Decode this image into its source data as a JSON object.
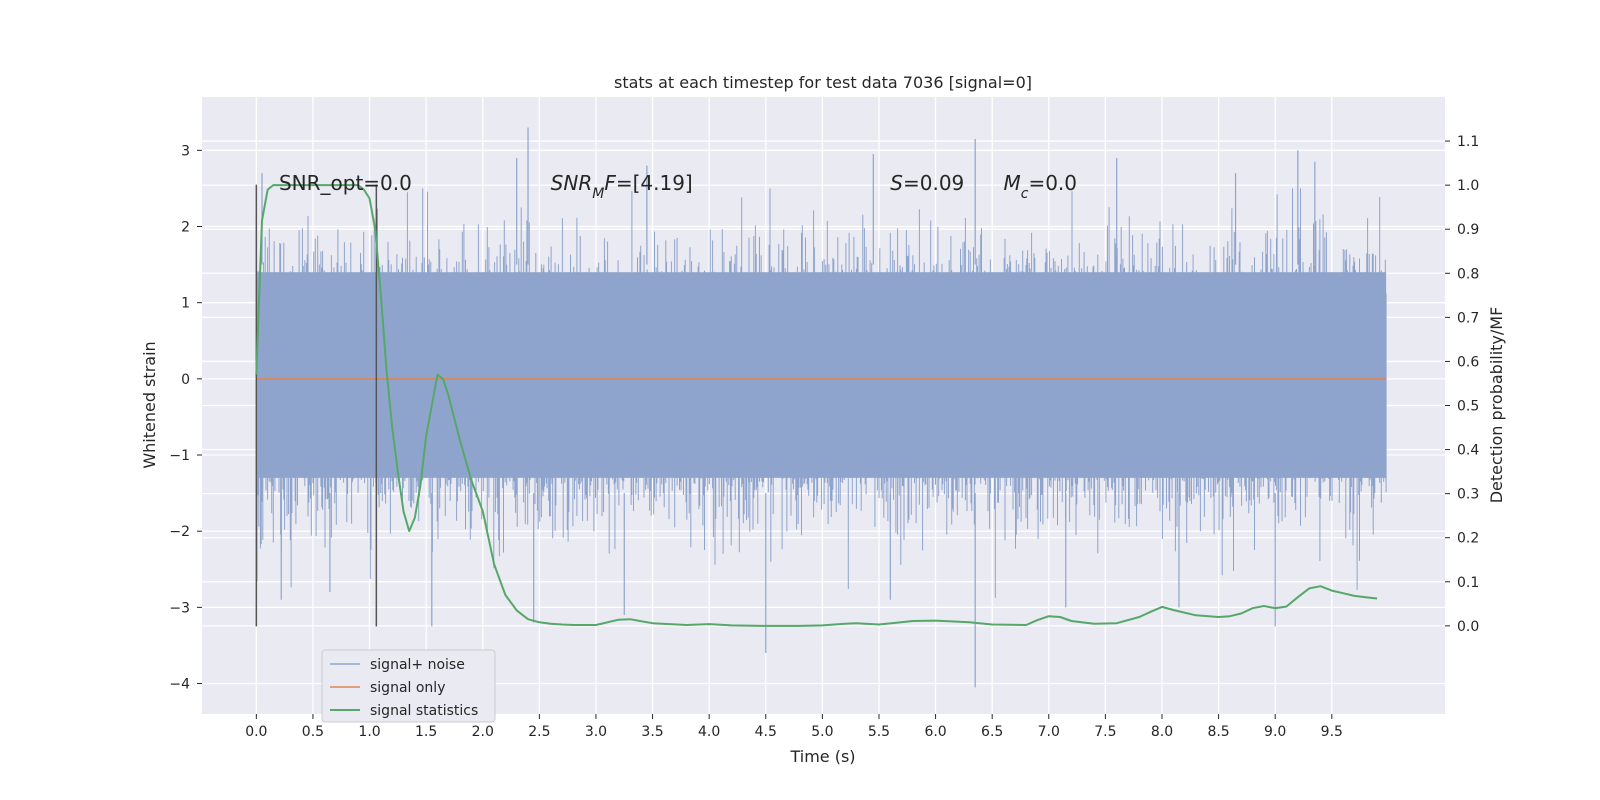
{
  "chart_data": {
    "type": "line",
    "title": "stats at each timestep for test data 7036 [signal=0]",
    "xlabel": "Time (s)",
    "ylabel": "Whitened strain",
    "ylabel_right": "Detection probability/MF",
    "xlim": [
      -0.48,
      10.5
    ],
    "ylim": [
      -4.4,
      3.7
    ],
    "ylim_right": [
      -0.2,
      1.2
    ],
    "x_ticks": [
      0.0,
      0.5,
      1.0,
      1.5,
      2.0,
      2.5,
      3.0,
      3.5,
      4.0,
      4.5,
      5.0,
      5.5,
      6.0,
      6.5,
      7.0,
      7.5,
      8.0,
      8.5,
      9.0,
      9.5
    ],
    "x_tick_labels": [
      "0.0",
      "0.5",
      "1.0",
      "1.5",
      "2.0",
      "2.5",
      "3.0",
      "3.5",
      "4.0",
      "4.5",
      "5.0",
      "5.5",
      "6.0",
      "6.5",
      "7.0",
      "7.5",
      "8.0",
      "8.5",
      "9.0",
      "9.5"
    ],
    "y_ticks": [
      -4,
      -3,
      -2,
      -1,
      0,
      1,
      2,
      3
    ],
    "y_tick_labels": [
      "−4",
      "−3",
      "−2",
      "−1",
      "0",
      "1",
      "2",
      "3"
    ],
    "y_right_ticks": [
      0.0,
      0.1,
      0.2,
      0.3,
      0.4,
      0.5,
      0.6,
      0.7,
      0.8,
      0.9,
      1.0,
      1.1
    ],
    "y_right_tick_labels": [
      "0.0",
      "0.1",
      "0.2",
      "0.3",
      "0.4",
      "0.5",
      "0.6",
      "0.7",
      "0.8",
      "0.9",
      "1.0",
      "1.1"
    ],
    "grid": true,
    "legend_position": "lower-left",
    "series": [
      {
        "name": "signal+ noise",
        "color": "#8fa4cc",
        "kind": "noise-band",
        "x_range": [
          0.0,
          9.98
        ],
        "core_band": [
          -1.3,
          1.4
        ],
        "spike_peaks": [
          {
            "x": 0.05,
            "y": 2.7
          },
          {
            "x": 0.22,
            "y": -2.9
          },
          {
            "x": 0.65,
            "y": -2.8
          },
          {
            "x": 1.55,
            "y": -3.25
          },
          {
            "x": 2.3,
            "y": 2.9
          },
          {
            "x": 2.4,
            "y": 3.3
          },
          {
            "x": 2.45,
            "y": -3.2
          },
          {
            "x": 3.25,
            "y": -3.1
          },
          {
            "x": 3.45,
            "y": 2.8
          },
          {
            "x": 4.5,
            "y": -3.6
          },
          {
            "x": 5.45,
            "y": 2.95
          },
          {
            "x": 5.6,
            "y": -2.9
          },
          {
            "x": 6.35,
            "y": 3.15
          },
          {
            "x": 6.35,
            "y": -4.05
          },
          {
            "x": 7.15,
            "y": -3.0
          },
          {
            "x": 7.6,
            "y": 2.9
          },
          {
            "x": 8.15,
            "y": -3.0
          },
          {
            "x": 8.65,
            "y": 2.7
          },
          {
            "x": 9.0,
            "y": -3.25
          },
          {
            "x": 9.2,
            "y": 3.0
          },
          {
            "x": 9.35,
            "y": 2.85
          }
        ]
      },
      {
        "name": "signal only",
        "color": "#dd8452",
        "x": [
          0.0,
          9.98
        ],
        "y": [
          0.0,
          0.0
        ]
      },
      {
        "name": "signal statistics",
        "color": "#55a868",
        "axis": "right",
        "x": [
          0.0,
          0.05,
          0.1,
          0.15,
          0.2,
          0.3,
          0.4,
          0.5,
          0.6,
          0.7,
          0.8,
          0.9,
          0.95,
          1.0,
          1.05,
          1.1,
          1.15,
          1.2,
          1.25,
          1.3,
          1.35,
          1.4,
          1.45,
          1.5,
          1.55,
          1.6,
          1.65,
          1.7,
          1.75,
          1.8,
          1.9,
          2.0,
          2.1,
          2.2,
          2.3,
          2.4,
          2.5,
          2.6,
          2.7,
          2.8,
          3.0,
          3.2,
          3.3,
          3.5,
          3.8,
          4.0,
          4.2,
          4.5,
          4.8,
          5.0,
          5.2,
          5.3,
          5.5,
          5.8,
          6.0,
          6.3,
          6.5,
          6.8,
          6.9,
          7.0,
          7.1,
          7.2,
          7.4,
          7.6,
          7.8,
          7.9,
          8.0,
          8.1,
          8.3,
          8.5,
          8.6,
          8.7,
          8.8,
          8.9,
          9.0,
          9.1,
          9.2,
          9.3,
          9.4,
          9.5,
          9.6,
          9.7,
          9.8,
          9.9
        ],
        "y": [
          0.57,
          0.92,
          0.99,
          1.0,
          1.0,
          1.0,
          1.0,
          1.0,
          1.0,
          1.0,
          1.0,
          1.0,
          0.99,
          0.97,
          0.9,
          0.75,
          0.58,
          0.45,
          0.35,
          0.26,
          0.215,
          0.245,
          0.32,
          0.43,
          0.5,
          0.57,
          0.56,
          0.52,
          0.47,
          0.42,
          0.33,
          0.26,
          0.14,
          0.07,
          0.035,
          0.015,
          0.008,
          0.005,
          0.003,
          0.002,
          0.002,
          0.014,
          0.015,
          0.006,
          0.002,
          0.004,
          0.001,
          0.0,
          0.0,
          0.001,
          0.005,
          0.006,
          0.003,
          0.011,
          0.012,
          0.008,
          0.003,
          0.002,
          0.013,
          0.022,
          0.02,
          0.011,
          0.005,
          0.006,
          0.02,
          0.032,
          0.043,
          0.036,
          0.024,
          0.02,
          0.022,
          0.028,
          0.04,
          0.045,
          0.04,
          0.044,
          0.065,
          0.085,
          0.09,
          0.08,
          0.074,
          0.068,
          0.065,
          0.062
        ]
      }
    ],
    "vertical_markers": [
      {
        "x": 0.0,
        "y_range": [
          -3.25,
          2.55
        ]
      },
      {
        "x": 1.06,
        "y_range": [
          -3.25,
          2.55
        ]
      }
    ],
    "annotations": [
      {
        "x": 0.2,
        "y": 2.48,
        "parts": [
          {
            "t": "SNR_opt=0.0"
          }
        ]
      },
      {
        "x": 2.6,
        "y": 2.48,
        "parts": [
          {
            "t": "SNR",
            "i": true
          },
          {
            "t": "M",
            "i": true,
            "sub": true
          },
          {
            "t": "F",
            "i": true
          },
          {
            "t": "=[4.19]"
          }
        ]
      },
      {
        "x": 5.6,
        "y": 2.48,
        "parts": [
          {
            "t": "S",
            "i": true
          },
          {
            "t": "=0.09"
          }
        ]
      },
      {
        "x": 6.6,
        "y": 2.48,
        "parts": [
          {
            "t": "M",
            "i": true
          },
          {
            "t": "c",
            "i": true,
            "sub": true
          },
          {
            "t": "=0.0"
          }
        ]
      }
    ]
  }
}
